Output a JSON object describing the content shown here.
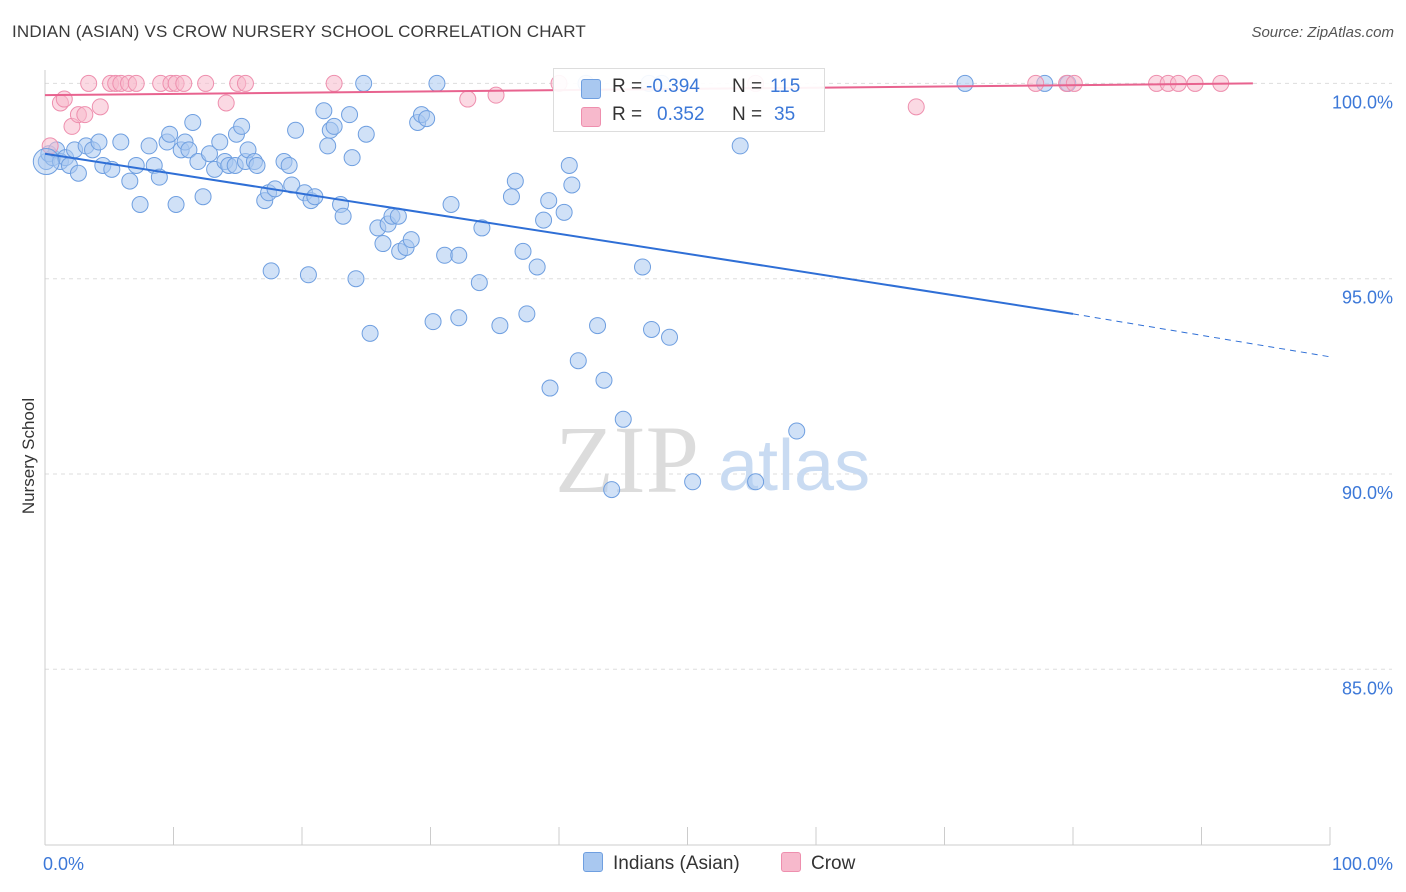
{
  "title": "INDIAN (ASIAN) VS CROW NURSERY SCHOOL CORRELATION CHART",
  "source": "Source: ZipAtlas.com",
  "watermark": {
    "zip": "ZIP",
    "atlas": "atlas"
  },
  "colors": {
    "blue_fill": "#a9c8f0",
    "blue_stroke": "#6f9fe0",
    "blue_line": "#2f6fd6",
    "pink_fill": "#f7b9cc",
    "pink_stroke": "#ee8fae",
    "pink_line": "#e8638f",
    "tick_text": "#3c78d8",
    "grid": "#dddddd"
  },
  "legend": {
    "rows": [
      {
        "r_label": "R =",
        "r_value": "-0.394",
        "n_label": "N =",
        "n_value": "115"
      },
      {
        "r_label": "R =",
        "r_value": "0.352",
        "n_label": "N =",
        "n_value": "35"
      }
    ]
  },
  "chart_data": {
    "type": "scatter",
    "title": "INDIAN (ASIAN) VS CROW NURSERY SCHOOL CORRELATION CHART",
    "xlabel": "",
    "ylabel": "Nursery School",
    "xlim": [
      0,
      100
    ],
    "ylim": [
      80.5,
      100.6
    ],
    "x_tick_labels": [
      "0.0%",
      "100.0%"
    ],
    "y_ticks": [
      {
        "value": 100,
        "label": "100.0%"
      },
      {
        "value": 95,
        "label": "95.0%"
      },
      {
        "value": 90,
        "label": "90.0%"
      },
      {
        "value": 85,
        "label": "85.0%"
      }
    ],
    "grid": true,
    "legend_placement": "top-center",
    "series": [
      {
        "name": "Indians (Asian)",
        "color": "blue",
        "r": -0.394,
        "n": 115,
        "trend": {
          "x0": 0,
          "y0": 98.2,
          "x1": 80,
          "y1": 94.1,
          "dash_to_x": 100,
          "dash_to_y": 93.0
        },
        "points": [
          [
            0.1,
            98.0
          ],
          [
            0.3,
            98.2
          ],
          [
            0.6,
            98.1
          ],
          [
            0.9,
            98.3
          ],
          [
            1.2,
            98.0
          ],
          [
            1.6,
            98.1
          ],
          [
            1.9,
            97.9
          ],
          [
            2.3,
            98.3
          ],
          [
            2.6,
            97.7
          ],
          [
            3.2,
            98.4
          ],
          [
            3.7,
            98.3
          ],
          [
            4.2,
            98.5
          ],
          [
            4.5,
            97.9
          ],
          [
            5.2,
            97.8
          ],
          [
            5.9,
            98.5
          ],
          [
            6.6,
            97.5
          ],
          [
            7.1,
            97.9
          ],
          [
            7.4,
            96.9
          ],
          [
            8.1,
            98.4
          ],
          [
            8.5,
            97.9
          ],
          [
            8.9,
            97.6
          ],
          [
            9.5,
            98.5
          ],
          [
            9.7,
            98.7
          ],
          [
            10.2,
            96.9
          ],
          [
            10.6,
            98.3
          ],
          [
            10.9,
            98.5
          ],
          [
            11.2,
            98.3
          ],
          [
            11.5,
            99.0
          ],
          [
            11.9,
            98.0
          ],
          [
            12.3,
            97.1
          ],
          [
            12.8,
            98.2
          ],
          [
            13.2,
            97.8
          ],
          [
            13.6,
            98.5
          ],
          [
            14.0,
            98.0
          ],
          [
            14.3,
            97.9
          ],
          [
            14.8,
            97.9
          ],
          [
            14.9,
            98.7
          ],
          [
            15.3,
            98.9
          ],
          [
            15.6,
            98.0
          ],
          [
            15.8,
            98.3
          ],
          [
            16.3,
            98.0
          ],
          [
            16.5,
            97.9
          ],
          [
            17.1,
            97.0
          ],
          [
            17.4,
            97.2
          ],
          [
            17.6,
            95.2
          ],
          [
            17.9,
            97.3
          ],
          [
            18.6,
            98.0
          ],
          [
            19.0,
            97.9
          ],
          [
            19.2,
            97.4
          ],
          [
            19.5,
            98.8
          ],
          [
            20.2,
            97.2
          ],
          [
            20.5,
            95.1
          ],
          [
            20.7,
            97.0
          ],
          [
            21.0,
            97.1
          ],
          [
            21.7,
            99.3
          ],
          [
            22.0,
            98.4
          ],
          [
            22.2,
            98.8
          ],
          [
            22.5,
            98.9
          ],
          [
            23.0,
            96.9
          ],
          [
            23.2,
            96.6
          ],
          [
            23.7,
            99.2
          ],
          [
            23.9,
            98.1
          ],
          [
            24.2,
            95.0
          ],
          [
            24.8,
            100.0
          ],
          [
            25.0,
            98.7
          ],
          [
            25.3,
            93.6
          ],
          [
            25.9,
            96.3
          ],
          [
            26.3,
            95.9
          ],
          [
            26.7,
            96.4
          ],
          [
            27.0,
            96.6
          ],
          [
            27.5,
            96.6
          ],
          [
            27.6,
            95.7
          ],
          [
            28.1,
            95.8
          ],
          [
            28.5,
            96.0
          ],
          [
            29.0,
            99.0
          ],
          [
            29.3,
            99.2
          ],
          [
            29.7,
            99.1
          ],
          [
            30.2,
            93.9
          ],
          [
            30.5,
            100.0
          ],
          [
            31.1,
            95.6
          ],
          [
            31.6,
            96.9
          ],
          [
            32.2,
            95.6
          ],
          [
            32.2,
            94.0
          ],
          [
            33.8,
            94.9
          ],
          [
            34.0,
            96.3
          ],
          [
            35.4,
            93.8
          ],
          [
            36.3,
            97.1
          ],
          [
            36.6,
            97.5
          ],
          [
            37.2,
            95.7
          ],
          [
            37.5,
            94.1
          ],
          [
            38.3,
            95.3
          ],
          [
            38.8,
            96.5
          ],
          [
            39.2,
            97.0
          ],
          [
            39.3,
            92.2
          ],
          [
            40.4,
            96.7
          ],
          [
            40.8,
            97.9
          ],
          [
            41.0,
            97.4
          ],
          [
            41.5,
            92.9
          ],
          [
            42.1,
            100.0
          ],
          [
            43.0,
            93.8
          ],
          [
            43.5,
            92.4
          ],
          [
            44.1,
            89.6
          ],
          [
            45.0,
            91.4
          ],
          [
            46.5,
            95.3
          ],
          [
            47.0,
            100.0
          ],
          [
            47.2,
            93.7
          ],
          [
            48.0,
            100.0
          ],
          [
            48.6,
            93.5
          ],
          [
            50.4,
            89.8
          ],
          [
            54.1,
            98.4
          ],
          [
            55.3,
            89.8
          ],
          [
            58.5,
            91.1
          ],
          [
            71.6,
            100.0
          ],
          [
            77.8,
            100.0
          ],
          [
            79.6,
            100.0
          ]
        ]
      },
      {
        "name": "Crow",
        "color": "pink",
        "r": 0.352,
        "n": 35,
        "trend": {
          "x0": 0,
          "y0": 99.7,
          "x1": 94,
          "y1": 100.0
        },
        "points": [
          [
            0.4,
            98.4
          ],
          [
            1.2,
            99.5
          ],
          [
            1.5,
            99.6
          ],
          [
            2.1,
            98.9
          ],
          [
            2.6,
            99.2
          ],
          [
            3.1,
            99.2
          ],
          [
            3.4,
            100.0
          ],
          [
            4.3,
            99.4
          ],
          [
            5.1,
            100.0
          ],
          [
            5.5,
            100.0
          ],
          [
            5.9,
            100.0
          ],
          [
            6.5,
            100.0
          ],
          [
            7.1,
            100.0
          ],
          [
            9.0,
            100.0
          ],
          [
            9.8,
            100.0
          ],
          [
            10.2,
            100.0
          ],
          [
            10.8,
            100.0
          ],
          [
            12.5,
            100.0
          ],
          [
            14.1,
            99.5
          ],
          [
            15.0,
            100.0
          ],
          [
            15.6,
            100.0
          ],
          [
            22.5,
            100.0
          ],
          [
            32.9,
            99.6
          ],
          [
            35.1,
            99.7
          ],
          [
            40.0,
            100.0
          ],
          [
            55.3,
            100.0
          ],
          [
            67.8,
            99.4
          ],
          [
            77.1,
            100.0
          ],
          [
            79.5,
            100.0
          ],
          [
            80.1,
            100.0
          ],
          [
            86.5,
            100.0
          ],
          [
            87.4,
            100.0
          ],
          [
            88.2,
            100.0
          ],
          [
            89.5,
            100.0
          ],
          [
            91.5,
            100.0
          ]
        ]
      }
    ]
  }
}
